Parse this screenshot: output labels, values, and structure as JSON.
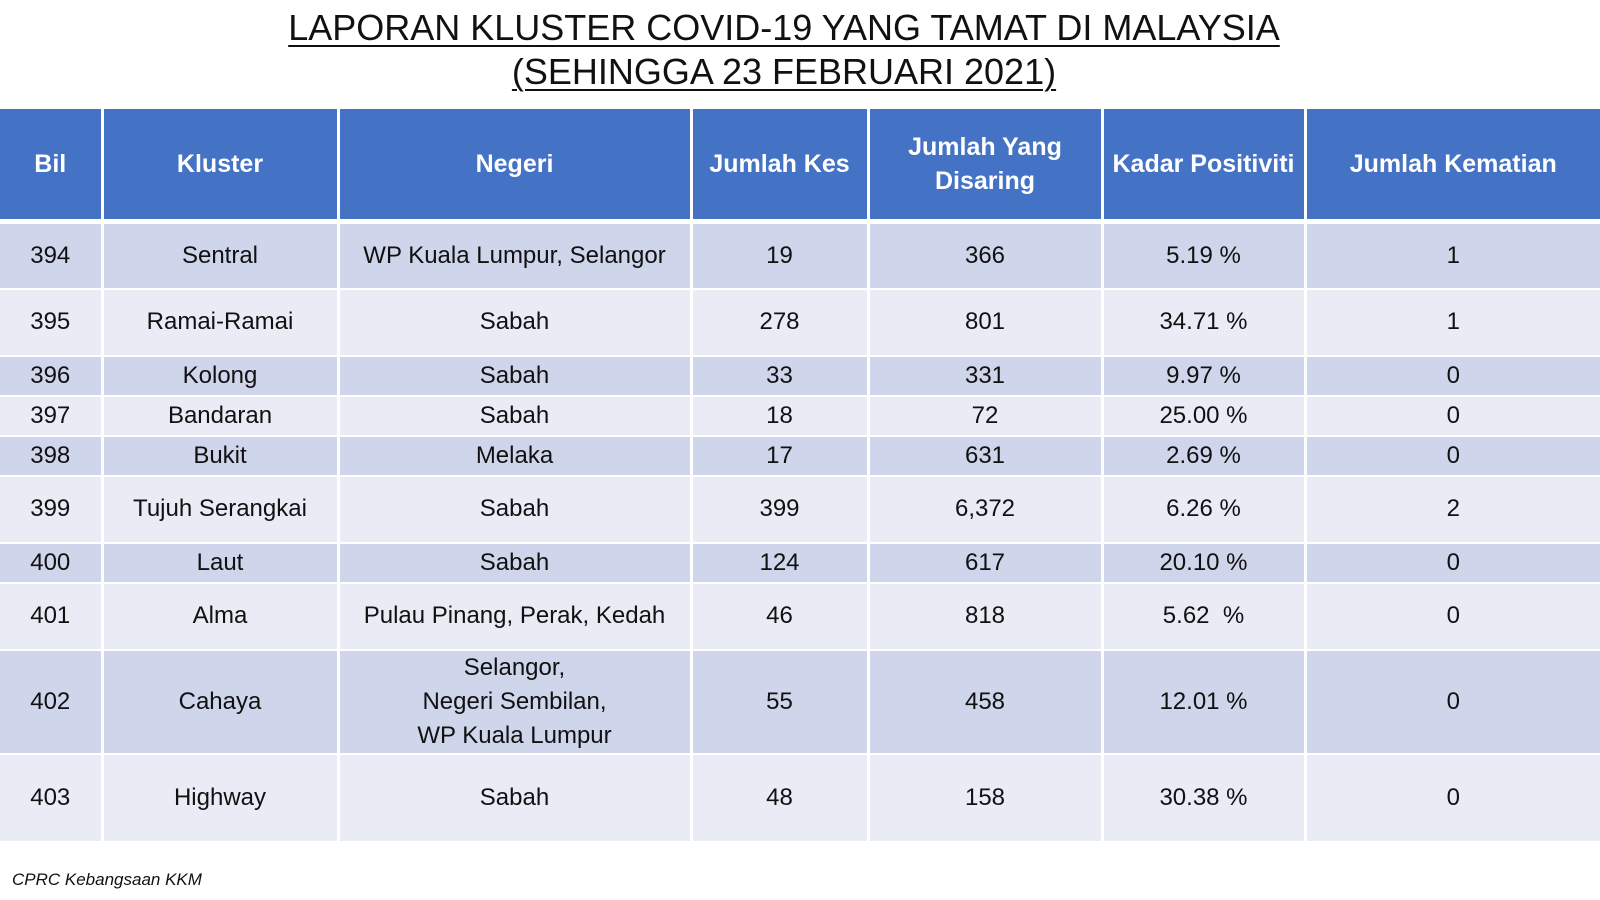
{
  "title": {
    "line1": "LAPORAN KLUSTER COVID-19 YANG TAMAT DI MALAYSIA",
    "line2": "(SEHINGGA 23 FEBRUARI 2021)"
  },
  "table": {
    "headers": {
      "bil": "Bil",
      "kluster": "Kluster",
      "negeri": "Negeri",
      "jumlah_kes": "Jumlah Kes",
      "jumlah_disaring_1": "Jumlah Yang",
      "jumlah_disaring_2": "Disaring",
      "kadar_positiviti": "Kadar Positiviti",
      "jumlah_kematian": "Jumlah Kematian"
    },
    "rows": [
      {
        "bil": "394",
        "kluster": "Sentral",
        "negeri": [
          "WP Kuala Lumpur, Selangor"
        ],
        "kes": "19",
        "disaring": "366",
        "positiviti": "5.19 %",
        "kematian": "1"
      },
      {
        "bil": "395",
        "kluster": "Ramai-Ramai",
        "negeri": [
          "Sabah"
        ],
        "kes": "278",
        "disaring": "801",
        "positiviti": "34.71 %",
        "kematian": "1"
      },
      {
        "bil": "396",
        "kluster": "Kolong",
        "negeri": [
          "Sabah"
        ],
        "kes": "33",
        "disaring": "331",
        "positiviti": "9.97 %",
        "kematian": "0"
      },
      {
        "bil": "397",
        "kluster": "Bandaran",
        "negeri": [
          "Sabah"
        ],
        "kes": "18",
        "disaring": "72",
        "positiviti": "25.00 %",
        "kematian": "0"
      },
      {
        "bil": "398",
        "kluster": "Bukit",
        "negeri": [
          "Melaka"
        ],
        "kes": "17",
        "disaring": "631",
        "positiviti": "2.69 %",
        "kematian": "0"
      },
      {
        "bil": "399",
        "kluster": "Tujuh Serangkai",
        "negeri": [
          "Sabah"
        ],
        "kes": "399",
        "disaring": "6,372",
        "positiviti": "6.26 %",
        "kematian": "2"
      },
      {
        "bil": "400",
        "kluster": "Laut",
        "negeri": [
          "Sabah"
        ],
        "kes": "124",
        "disaring": "617",
        "positiviti": "20.10 %",
        "kematian": "0"
      },
      {
        "bil": "401",
        "kluster": "Alma",
        "negeri": [
          "Pulau Pinang, Perak, Kedah"
        ],
        "kes": "46",
        "disaring": "818",
        "positiviti": "5.62  %",
        "kematian": "0"
      },
      {
        "bil": "402",
        "kluster": "Cahaya",
        "negeri": [
          "Selangor,",
          "Negeri Sembilan,",
          "WP Kuala Lumpur"
        ],
        "kes": "55",
        "disaring": "458",
        "positiviti": "12.01 %",
        "kematian": "0"
      },
      {
        "bil": "403",
        "kluster": "Highway",
        "negeri": [
          "Sabah"
        ],
        "kes": "48",
        "disaring": "158",
        "positiviti": "30.38 %",
        "kematian": "0"
      }
    ]
  },
  "footer": {
    "source": "CPRC Kebangsaan KKM"
  }
}
